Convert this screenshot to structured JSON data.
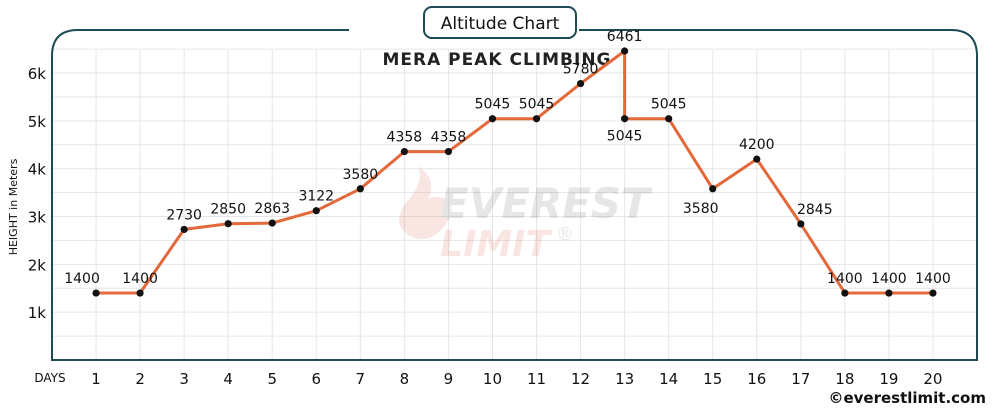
{
  "badge": {
    "text": "Altitude Chart"
  },
  "credit": {
    "text": "©everestlimit.com"
  },
  "watermark": {
    "line1": "EVEREST",
    "line2": "LIMIT",
    "mark": "®"
  },
  "chart_data": {
    "type": "line",
    "title": "MERA PEAK CLIMBING",
    "xlabel": "DAYS",
    "ylabel": "HEIGHT in Meters",
    "x": [
      1,
      2,
      3,
      4,
      5,
      6,
      7,
      8,
      9,
      10,
      11,
      12,
      13,
      13,
      14,
      15,
      16,
      17,
      18,
      19,
      20
    ],
    "series": [
      {
        "values": [
          1400,
          1400,
          2730,
          2850,
          2863,
          3122,
          3580,
          4358,
          4358,
          5045,
          5045,
          5780,
          6461,
          5045,
          5045,
          3580,
          4200,
          2845,
          1400,
          1400,
          1400
        ]
      }
    ],
    "xticks": [
      "1",
      "2",
      "3",
      "4",
      "5",
      "6",
      "7",
      "8",
      "9",
      "10",
      "11",
      "12",
      "13",
      "14",
      "15",
      "16",
      "17",
      "18",
      "19",
      "20"
    ],
    "yticks": [
      {
        "value": 1000,
        "label": "1k"
      },
      {
        "value": 2000,
        "label": "2k"
      },
      {
        "value": 3000,
        "label": "3k"
      },
      {
        "value": 4000,
        "label": "4k"
      },
      {
        "value": 5000,
        "label": "5k"
      },
      {
        "value": 6000,
        "label": "6k"
      }
    ],
    "ylim": [
      0,
      6900
    ],
    "xlim": [
      0,
      21
    ],
    "grid": true,
    "colors": {
      "line": "#e4693a",
      "marker": "#111111",
      "frame": "#1d4a55",
      "grid": "#e6e6e6"
    }
  }
}
